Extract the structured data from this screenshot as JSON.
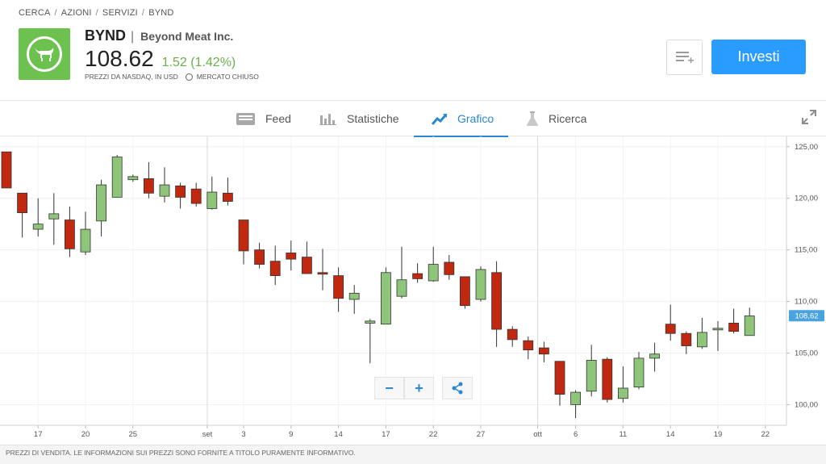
{
  "breadcrumb": [
    "CERCA",
    "AZIONI",
    "SERVIZI",
    "BYND"
  ],
  "header": {
    "ticker": "BYND",
    "separator": "|",
    "company": "Beyond Meat Inc.",
    "price": "108.62",
    "change": "1.52 (1.42%)",
    "source": "PREZZI DA NASDAQ, IN USD",
    "market_status": "MERCATO CHIUSO",
    "brand_color": "#6dc14f"
  },
  "actions": {
    "invest_label": "Investi",
    "watchlist_icon": "add-to-list-icon"
  },
  "tabs": [
    {
      "label": "Feed",
      "icon": "feed-icon",
      "active": false
    },
    {
      "label": "Statistiche",
      "icon": "stats-icon",
      "active": false
    },
    {
      "label": "Grafico",
      "icon": "chart-icon",
      "active": true
    },
    {
      "label": "Ricerca",
      "icon": "research-icon",
      "active": false
    }
  ],
  "chart_data": {
    "type": "candlestick",
    "ylim": [
      98,
      126
    ],
    "y_ticks": [
      100,
      105,
      110,
      115,
      120,
      125
    ],
    "y_tick_labels": [
      "100,00",
      "105,00",
      "110,00",
      "115,00",
      "120,00",
      "125,00"
    ],
    "last_price_label": "108,62",
    "last_price": 108.62,
    "x_ticks": [
      "17",
      "20",
      "25",
      "set",
      "3",
      "9",
      "14",
      "17",
      "22",
      "27",
      "ott",
      "6",
      "11",
      "14",
      "19",
      "22"
    ],
    "candles": [
      {
        "o": 124.5,
        "h": 124.5,
        "l": 121,
        "c": 121
      },
      {
        "o": 120.5,
        "h": 120.5,
        "l": 116.2,
        "c": 118.6
      },
      {
        "o": 117,
        "h": 120,
        "l": 116.3,
        "c": 117.5
      },
      {
        "o": 118,
        "h": 120.5,
        "l": 115.5,
        "c": 118.5
      },
      {
        "o": 117.9,
        "h": 119.2,
        "l": 114.3,
        "c": 115.1
      },
      {
        "o": 114.8,
        "h": 118.7,
        "l": 114.5,
        "c": 117
      },
      {
        "o": 117.8,
        "h": 121.8,
        "l": 116.3,
        "c": 121.3
      },
      {
        "o": 120.1,
        "h": 124.2,
        "l": 120.1,
        "c": 124
      },
      {
        "o": 121.8,
        "h": 122.3,
        "l": 121.6,
        "c": 122.1
      },
      {
        "o": 121.9,
        "h": 123.5,
        "l": 120,
        "c": 120.5
      },
      {
        "o": 120.2,
        "h": 123,
        "l": 119.6,
        "c": 121.3
      },
      {
        "o": 121.2,
        "h": 121.5,
        "l": 119,
        "c": 120.1
      },
      {
        "o": 120.9,
        "h": 121.5,
        "l": 119.2,
        "c": 119.5
      },
      {
        "o": 119,
        "h": 122.1,
        "l": 118.9,
        "c": 120.6
      },
      {
        "o": 120.5,
        "h": 122,
        "l": 119.3,
        "c": 119.7
      },
      {
        "o": 117.9,
        "h": 117.9,
        "l": 113.6,
        "c": 114.9
      },
      {
        "o": 115,
        "h": 115.7,
        "l": 113.2,
        "c": 113.6
      },
      {
        "o": 113.9,
        "h": 115.4,
        "l": 111.6,
        "c": 112.5
      },
      {
        "o": 114.7,
        "h": 115.9,
        "l": 113,
        "c": 114.1
      },
      {
        "o": 114.3,
        "h": 115.8,
        "l": 112.7,
        "c": 112.7
      },
      {
        "o": 112.8,
        "h": 115.1,
        "l": 111.1,
        "c": 112.7
      },
      {
        "o": 112.5,
        "h": 113.3,
        "l": 109,
        "c": 110.3
      },
      {
        "o": 110.2,
        "h": 111.6,
        "l": 108.8,
        "c": 110.8
      },
      {
        "o": 107.9,
        "h": 108.3,
        "l": 104,
        "c": 108.1
      },
      {
        "o": 107.8,
        "h": 113.3,
        "l": 107.8,
        "c": 112.8
      },
      {
        "o": 110.5,
        "h": 115.3,
        "l": 110.3,
        "c": 112.1
      },
      {
        "o": 112.7,
        "h": 113.7,
        "l": 111.8,
        "c": 112.2
      },
      {
        "o": 112,
        "h": 115.3,
        "l": 111.9,
        "c": 113.6
      },
      {
        "o": 113.8,
        "h": 114.5,
        "l": 112.1,
        "c": 112.6
      },
      {
        "o": 112.4,
        "h": 112.4,
        "l": 109.3,
        "c": 109.6
      },
      {
        "o": 110.2,
        "h": 113.4,
        "l": 110,
        "c": 113.1
      },
      {
        "o": 112.8,
        "h": 113.9,
        "l": 105.6,
        "c": 107.3
      },
      {
        "o": 107.3,
        "h": 107.6,
        "l": 105.6,
        "c": 106.3
      },
      {
        "o": 106.2,
        "h": 106.6,
        "l": 104.4,
        "c": 105.3
      },
      {
        "o": 105.5,
        "h": 106.1,
        "l": 104.1,
        "c": 104.9
      },
      {
        "o": 104.2,
        "h": 104.2,
        "l": 99.9,
        "c": 101
      },
      {
        "o": 100,
        "h": 101.4,
        "l": 98.7,
        "c": 101.2
      },
      {
        "o": 101.3,
        "h": 105.8,
        "l": 100.8,
        "c": 104.3
      },
      {
        "o": 104.4,
        "h": 104.6,
        "l": 100.2,
        "c": 100.5
      },
      {
        "o": 100.6,
        "h": 103.7,
        "l": 100.2,
        "c": 101.6
      },
      {
        "o": 101.7,
        "h": 105.1,
        "l": 101.5,
        "c": 104.5
      },
      {
        "o": 104.5,
        "h": 106,
        "l": 103.2,
        "c": 104.9
      },
      {
        "o": 107.8,
        "h": 109.7,
        "l": 106.2,
        "c": 106.9
      },
      {
        "o": 106.9,
        "h": 107.1,
        "l": 104.9,
        "c": 105.7
      },
      {
        "o": 105.6,
        "h": 108.4,
        "l": 105.4,
        "c": 107
      },
      {
        "o": 107.3,
        "h": 108.1,
        "l": 105.2,
        "c": 107.4
      },
      {
        "o": 107.9,
        "h": 109.3,
        "l": 106.9,
        "c": 107.1
      },
      {
        "o": 106.7,
        "h": 109.4,
        "l": 106.7,
        "c": 108.6
      }
    ]
  },
  "footer_text": "PREZZI DI VENDITA. LE INFORMAZIONI SUI PREZZI SONO FORNITE A TITOLO PURAMENTE INFORMATIVO."
}
